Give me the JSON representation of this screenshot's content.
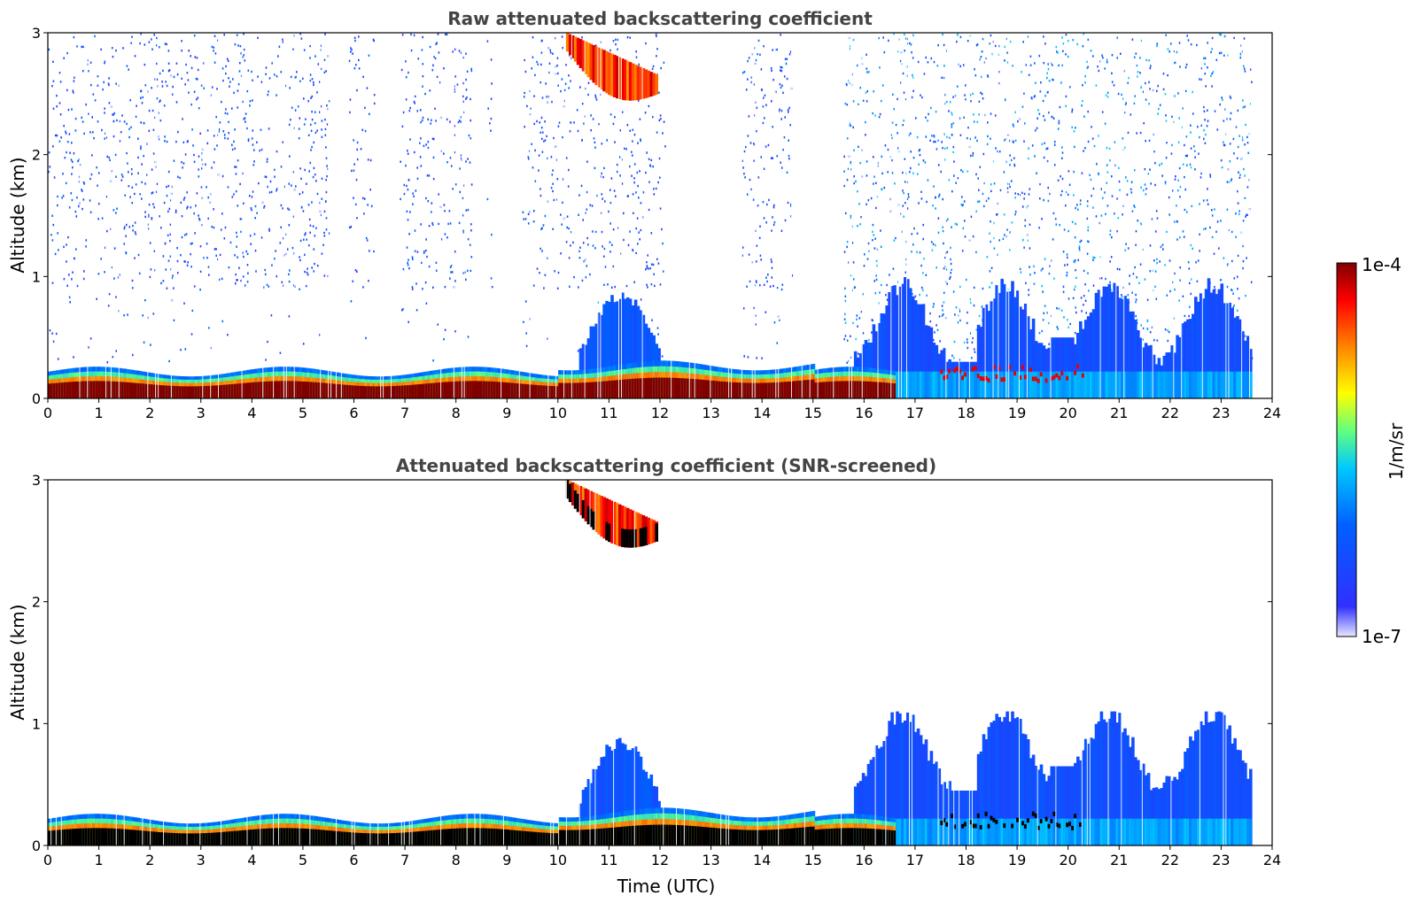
{
  "chart_data": [
    {
      "type": "heatmap",
      "title": "Raw attenuated backscattering coefficient",
      "xlabel": "",
      "ylabel": "Altitude (km)",
      "xlim": [
        0,
        24
      ],
      "ylim": [
        0,
        3
      ],
      "x_ticks": [
        "0",
        "1",
        "2",
        "3",
        "4",
        "5",
        "6",
        "7",
        "8",
        "9",
        "10",
        "11",
        "12",
        "13",
        "14",
        "15",
        "16",
        "17",
        "18",
        "19",
        "20",
        "21",
        "22",
        "23",
        "24"
      ],
      "y_ticks": [
        "0",
        "1",
        "2",
        "3"
      ],
      "data_end_hour": 23.6,
      "features": [
        {
          "name": "near-surface aerosol layer",
          "x_range": [
            0,
            16.5
          ],
          "alt_km": [
            0,
            0.25
          ],
          "level": "high"
        },
        {
          "name": "high cloud",
          "x_range": [
            10.2,
            12
          ],
          "alt_km": [
            2.45,
            3.0
          ],
          "level": "high"
        },
        {
          "name": "boundary layer",
          "x_range": [
            15.8,
            23.6
          ],
          "alt_km": [
            0,
            0.9
          ],
          "level": "medium"
        },
        {
          "name": "noise",
          "x_range": [
            0,
            23.6
          ],
          "alt_km": [
            0.3,
            3.0
          ],
          "level": "low"
        }
      ]
    },
    {
      "type": "heatmap",
      "title": "Attenuated backscattering coefficient (SNR-screened)",
      "xlabel": "Time (UTC)",
      "ylabel": "Altitude (km)",
      "xlim": [
        0,
        24
      ],
      "ylim": [
        0,
        3
      ],
      "x_ticks": [
        "0",
        "1",
        "2",
        "3",
        "4",
        "5",
        "6",
        "7",
        "8",
        "9",
        "10",
        "11",
        "12",
        "13",
        "14",
        "15",
        "16",
        "17",
        "18",
        "19",
        "20",
        "21",
        "22",
        "23",
        "24"
      ],
      "y_ticks": [
        "0",
        "1",
        "2",
        "3"
      ],
      "data_end_hour": 23.6,
      "features": [
        {
          "name": "near-surface aerosol layer (saturated black)",
          "x_range": [
            0,
            16.5
          ],
          "alt_km": [
            0,
            0.25
          ],
          "level": "high"
        },
        {
          "name": "high cloud",
          "x_range": [
            10.2,
            12
          ],
          "alt_km": [
            2.45,
            3.0
          ],
          "level": "high"
        },
        {
          "name": "boundary layer",
          "x_range": [
            15.8,
            23.6
          ],
          "alt_km": [
            0,
            1.1
          ],
          "level": "medium"
        }
      ]
    }
  ],
  "colorbar": {
    "max_label": "1e-4",
    "min_label": "1e-7",
    "unit_label": "1/m/sr",
    "stops": [
      "#ffffff",
      "#0000ff",
      "#00c8ff",
      "#50ff90",
      "#ffff00",
      "#ff8000",
      "#ff0000",
      "#800000"
    ]
  }
}
